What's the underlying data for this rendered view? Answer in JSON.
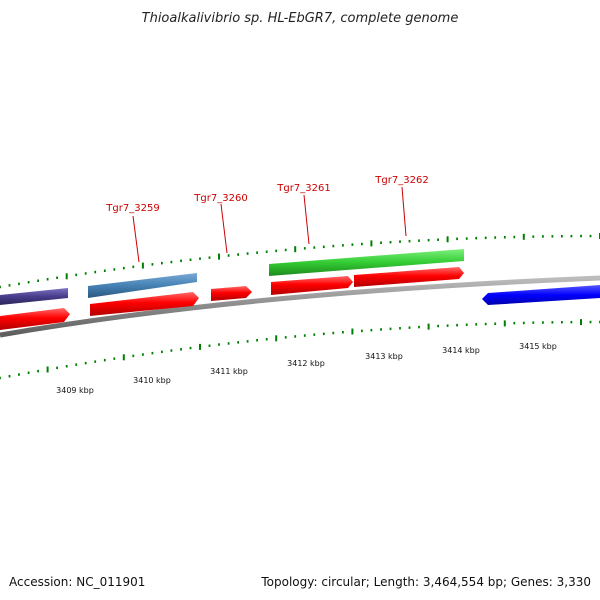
{
  "title": "Thioalkalivibrio sp. HL-EbGR7, complete genome",
  "footer": {
    "accession": "Accession: NC_011901",
    "summary": "Topology: circular; Length: 3,464,554 bp; Genes: 3,330"
  },
  "colors": {
    "label": "#cc0000",
    "tick": "#008000",
    "backbone": "#808080",
    "cds_red": "#ff0000",
    "gene_green": "#33cc33",
    "gene_steelblue": "#4682b4",
    "gene_darkslate": "#483d8b",
    "gene_blue": "#0000ff"
  },
  "gene_labels": [
    {
      "text": "Tgr7_3259"
    },
    {
      "text": "Tgr7_3260"
    },
    {
      "text": "Tgr7_3261"
    },
    {
      "text": "Tgr7_3262"
    }
  ],
  "kbp_labels": [
    "3409 kbp",
    "3410 kbp",
    "3411 kbp",
    "3412 kbp",
    "3413 kbp",
    "3414 kbp",
    "3415 kbp"
  ],
  "features": [
    {
      "type": "gene",
      "color": "gene_darkslate",
      "strand": "forward"
    },
    {
      "type": "gene",
      "color": "gene_steelblue",
      "strand": "forward"
    },
    {
      "type": "gene",
      "color": "gene_green",
      "strand": "forward"
    },
    {
      "type": "cds",
      "color": "cds_red",
      "strand": "forward"
    },
    {
      "type": "cds",
      "color": "cds_red",
      "strand": "forward"
    },
    {
      "type": "cds",
      "color": "cds_red",
      "strand": "forward"
    },
    {
      "type": "cds",
      "color": "cds_red",
      "strand": "forward"
    },
    {
      "type": "cds",
      "color": "cds_red",
      "strand": "forward"
    },
    {
      "type": "gene",
      "color": "gene_blue",
      "strand": "reverse"
    }
  ]
}
